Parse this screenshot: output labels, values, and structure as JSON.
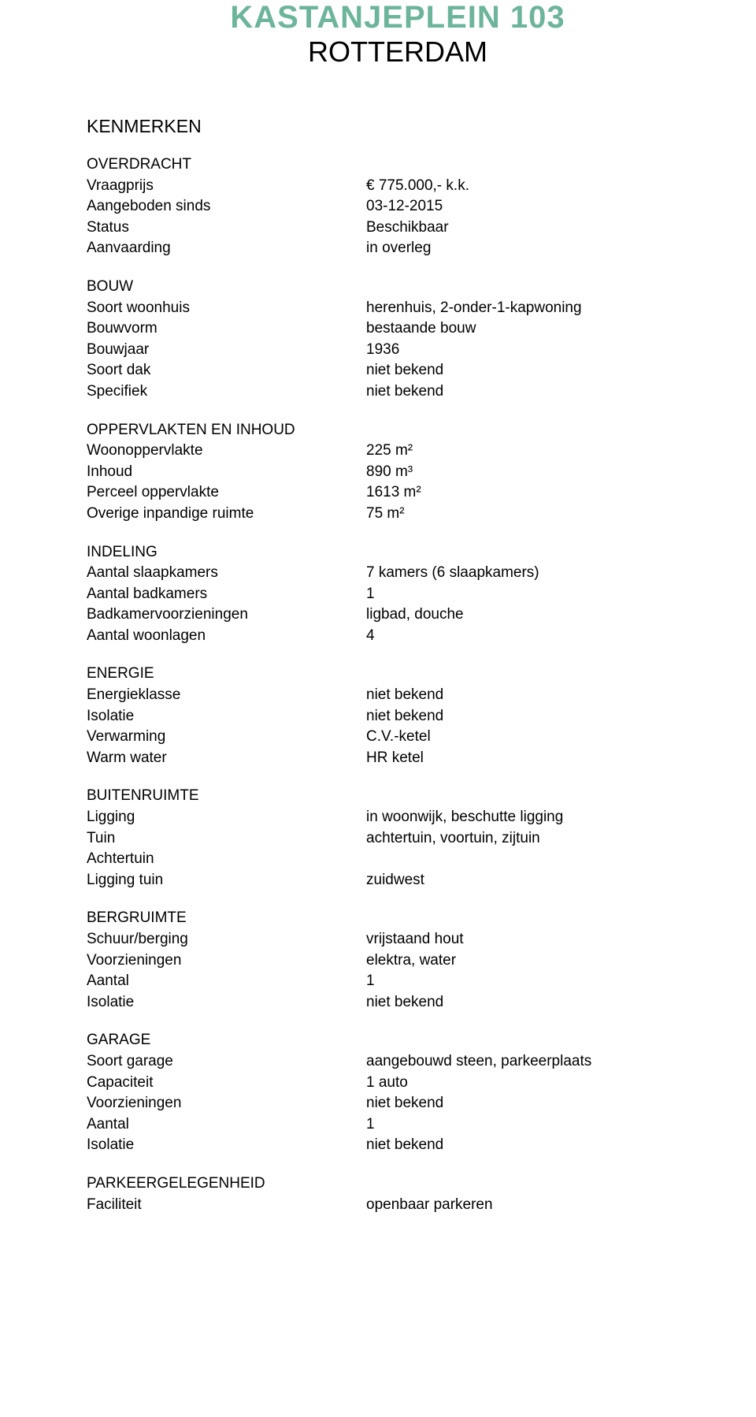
{
  "title": "KASTANJEPLEIN 103",
  "subtitle": "ROTTERDAM",
  "section_heading": "KENMERKEN",
  "groups": [
    {
      "title": "OVERDRACHT",
      "rows": [
        {
          "label": "Vraagprijs",
          "value": "€ 775.000,- k.k."
        },
        {
          "label": "Aangeboden sinds",
          "value": "03-12-2015"
        },
        {
          "label": "Status",
          "value": "Beschikbaar"
        },
        {
          "label": "Aanvaarding",
          "value": "in overleg"
        }
      ]
    },
    {
      "title": "BOUW",
      "rows": [
        {
          "label": "Soort woonhuis",
          "value": "herenhuis, 2-onder-1-kapwoning"
        },
        {
          "label": "Bouwvorm",
          "value": "bestaande bouw"
        },
        {
          "label": "Bouwjaar",
          "value": "1936"
        },
        {
          "label": "Soort dak",
          "value": "niet bekend"
        },
        {
          "label": "Specifiek",
          "value": "niet bekend"
        }
      ]
    },
    {
      "title": "OPPERVLAKTEN EN INHOUD",
      "rows": [
        {
          "label": "Woonoppervlakte",
          "value": "225 m²"
        },
        {
          "label": "Inhoud",
          "value": "890 m³"
        },
        {
          "label": "Perceel oppervlakte",
          "value": "1613 m²"
        },
        {
          "label": "Overige inpandige ruimte",
          "value": "75 m²"
        }
      ]
    },
    {
      "title": "INDELING",
      "rows": [
        {
          "label": "Aantal slaapkamers",
          "value": "7 kamers (6 slaapkamers)"
        },
        {
          "label": "Aantal badkamers",
          "value": "1"
        },
        {
          "label": "Badkamervoorzieningen",
          "value": "ligbad, douche"
        },
        {
          "label": "Aantal woonlagen",
          "value": "4"
        }
      ]
    },
    {
      "title": "ENERGIE",
      "rows": [
        {
          "label": "Energieklasse",
          "value": "niet bekend"
        },
        {
          "label": "Isolatie",
          "value": "niet bekend"
        },
        {
          "label": "Verwarming",
          "value": "C.V.-ketel"
        },
        {
          "label": "Warm water",
          "value": "HR ketel"
        }
      ]
    },
    {
      "title": "BUITENRUIMTE",
      "rows": [
        {
          "label": "Ligging",
          "value": "in woonwijk, beschutte ligging"
        },
        {
          "label": "Tuin",
          "value": "achtertuin, voortuin, zijtuin"
        },
        {
          "label": "Achtertuin",
          "value": ""
        },
        {
          "label": "Ligging tuin",
          "value": "zuidwest"
        }
      ]
    },
    {
      "title": "BERGRUIMTE",
      "rows": [
        {
          "label": "Schuur/berging",
          "value": "vrijstaand hout"
        },
        {
          "label": "Voorzieningen",
          "value": "elektra, water"
        },
        {
          "label": "Aantal",
          "value": "1"
        },
        {
          "label": "Isolatie",
          "value": "niet bekend"
        }
      ]
    },
    {
      "title": "GARAGE",
      "rows": [
        {
          "label": "Soort garage",
          "value": "aangebouwd steen, parkeerplaats"
        },
        {
          "label": "Capaciteit",
          "value": "1 auto"
        },
        {
          "label": "Voorzieningen",
          "value": "niet bekend"
        },
        {
          "label": "Aantal",
          "value": "1"
        },
        {
          "label": "Isolatie",
          "value": "niet bekend"
        }
      ]
    },
    {
      "title": "PARKEERGELEGENHEID",
      "rows": [
        {
          "label": "Faciliteit",
          "value": "openbaar parkeren"
        }
      ]
    }
  ]
}
